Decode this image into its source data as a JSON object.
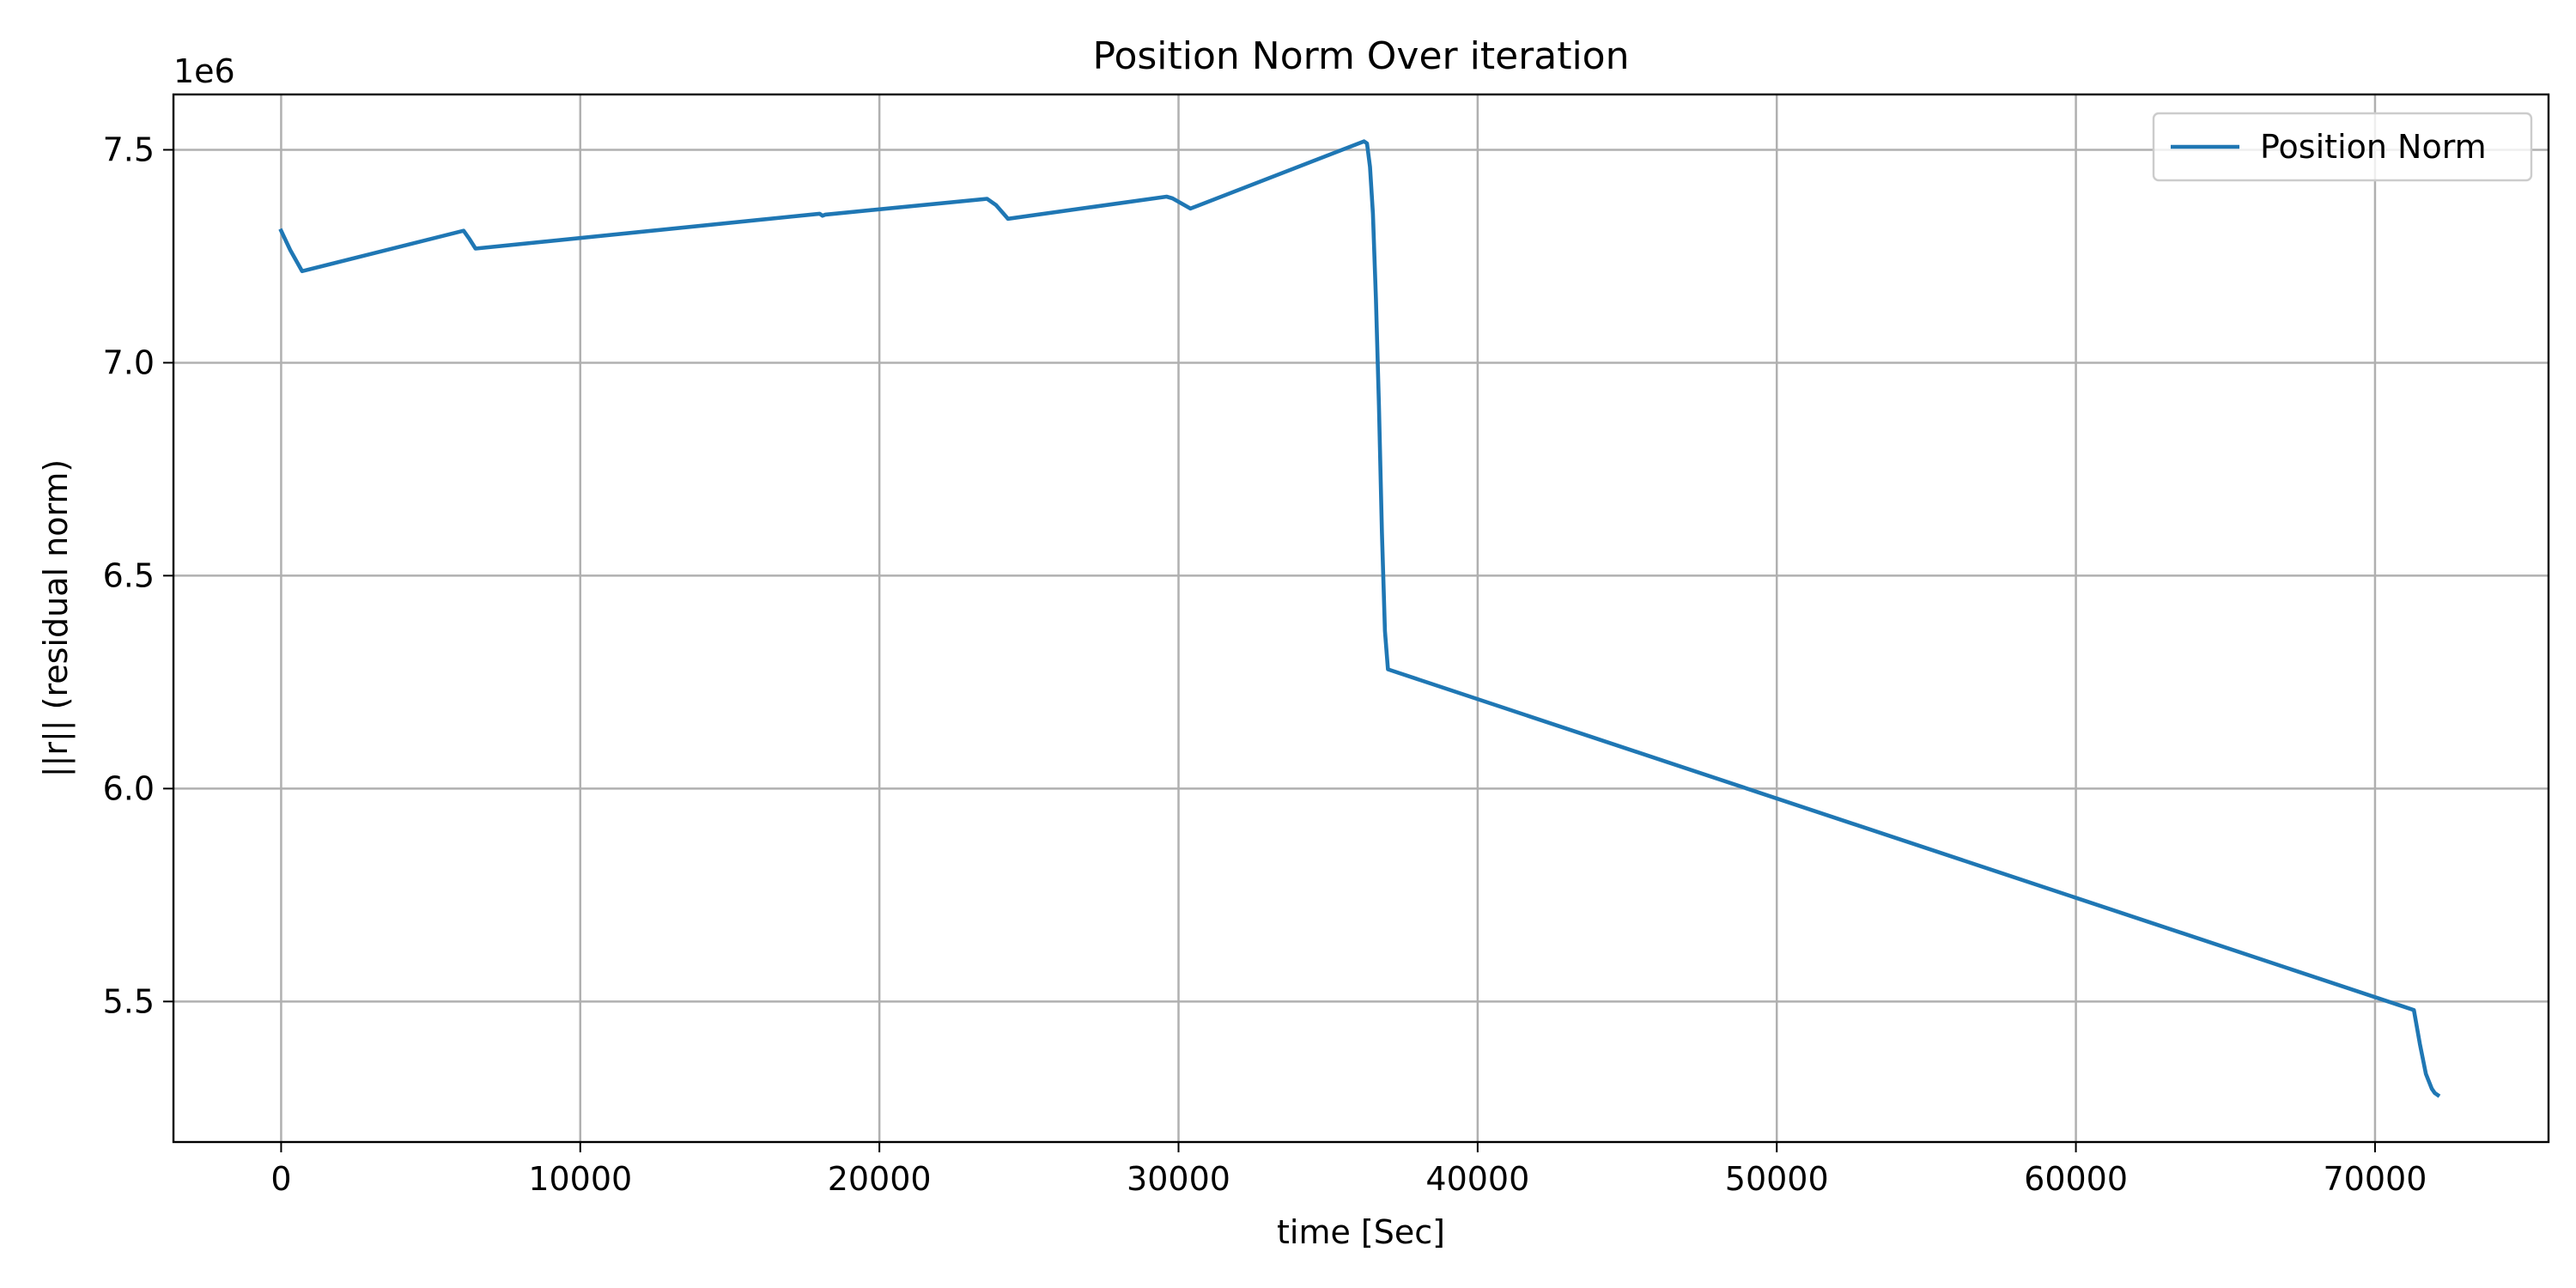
{
  "chart_data": {
    "type": "line",
    "title": "Position Norm Over iteration",
    "xlabel": "time [Sec]",
    "ylabel": "||r|| (residual norm)",
    "y_offset_label": "1e6",
    "xlim": [
      -3600,
      75800
    ],
    "ylim": [
      5170000,
      7630000
    ],
    "x_ticks": [
      0,
      10000,
      20000,
      30000,
      40000,
      50000,
      60000,
      70000
    ],
    "x_tick_labels": [
      "0",
      "10000",
      "20000",
      "30000",
      "40000",
      "50000",
      "60000",
      "70000"
    ],
    "y_ticks": [
      5500000,
      6000000,
      6500000,
      7000000,
      7500000
    ],
    "y_tick_labels": [
      "5.5",
      "6.0",
      "6.5",
      "7.0",
      "7.5"
    ],
    "grid": true,
    "legend_position": "top-right",
    "series": [
      {
        "name": "Position Norm",
        "color": "#1f77b4",
        "x": [
          0,
          300,
          700,
          6100,
          6300,
          6500,
          18000,
          18100,
          18200,
          23600,
          23900,
          24300,
          29600,
          29800,
          30400,
          36200,
          36300,
          36400,
          36500,
          36600,
          36700,
          36800,
          36900,
          37000,
          71300,
          71500,
          71700,
          71900,
          72000,
          72100
        ],
        "y": [
          7310000,
          7265000,
          7215000,
          7310000,
          7290000,
          7268000,
          7350000,
          7345000,
          7348000,
          7385000,
          7370000,
          7338000,
          7390000,
          7386000,
          7362000,
          7520000,
          7515000,
          7460000,
          7350000,
          7150000,
          6900000,
          6600000,
          6370000,
          6280000,
          5480000,
          5400000,
          5330000,
          5295000,
          5285000,
          5280000
        ]
      }
    ]
  }
}
